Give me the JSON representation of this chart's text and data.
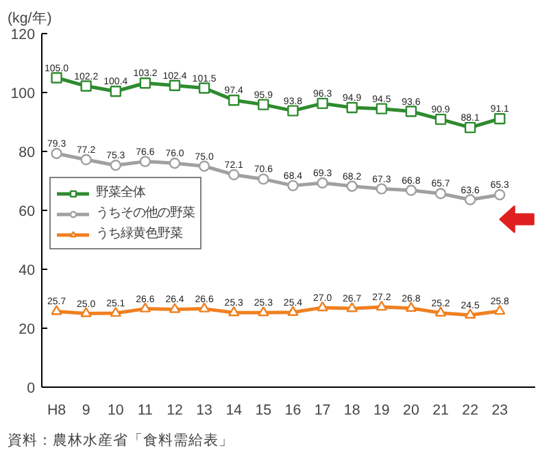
{
  "chart_data": {
    "type": "line",
    "ylabel": "(kg/年)",
    "categories": [
      "H8",
      "9",
      "10",
      "11",
      "12",
      "13",
      "14",
      "15",
      "16",
      "17",
      "18",
      "19",
      "20",
      "21",
      "22",
      "23"
    ],
    "series": [
      {
        "name": "野菜全体",
        "color": "#2e8b2e",
        "marker": "square",
        "values": [
          105.0,
          102.2,
          100.4,
          103.2,
          102.4,
          101.5,
          97.4,
          95.9,
          93.8,
          96.3,
          94.9,
          94.5,
          93.6,
          90.9,
          88.1,
          91.1
        ],
        "value_labels": [
          "105.0",
          "102.2",
          "100.4",
          "103.2",
          "102.4",
          "101.5",
          "97.4",
          "95.9",
          "93.8",
          "96.3",
          "94.9",
          "94.5",
          "93.6",
          "90.9",
          "88.1",
          "91.1"
        ]
      },
      {
        "name": "うちその他の野菜",
        "color": "#a0a0a0",
        "marker": "circle",
        "values": [
          79.3,
          77.2,
          75.3,
          76.6,
          76.0,
          75.0,
          72.1,
          70.6,
          68.4,
          69.3,
          68.2,
          67.3,
          66.8,
          65.7,
          63.6,
          65.3
        ],
        "value_labels": [
          "79.3",
          "77.2",
          "75.3",
          "76.6",
          "76.0",
          "75.0",
          "72.1",
          "70.6",
          "68.4",
          "69.3",
          "68.2",
          "67.3",
          "66.8",
          "65.7",
          "63.6",
          "65.3"
        ]
      },
      {
        "name": "うち緑黄色野菜",
        "color": "#f08020",
        "marker": "triangle",
        "values": [
          25.7,
          25.0,
          25.1,
          26.6,
          26.4,
          26.6,
          25.3,
          25.3,
          25.4,
          27.0,
          26.7,
          27.2,
          26.8,
          25.2,
          24.5,
          25.8
        ],
        "value_labels": [
          "25.7",
          "25.0",
          "25.1",
          "26.6",
          "26.4",
          "26.6",
          "25.3",
          "25.3",
          "25.4",
          "27.0",
          "26.7",
          "27.2",
          "26.8",
          "25.2",
          "24.5",
          "25.8"
        ]
      }
    ],
    "ylim": [
      0,
      120
    ],
    "yticks": [
      0,
      20,
      40,
      60,
      80,
      100,
      120
    ],
    "grid": false,
    "legend": "left",
    "line_style": "solid",
    "annotations": [
      "資料：農林水産省「食料需給表」"
    ]
  }
}
